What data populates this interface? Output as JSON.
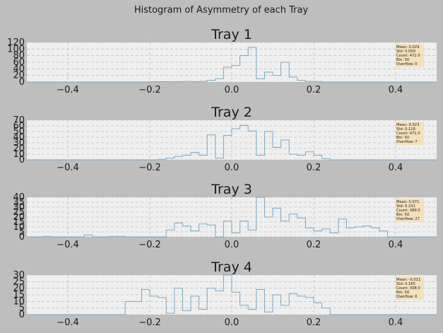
{
  "figure_title": "Histogram of Asymmetry of each Tray",
  "colors": {
    "background": "#bebebe",
    "axes_face": "#efefef",
    "grid": "#b0b0b0",
    "histogram_line": "#7aa6c2",
    "stats_box": "#f5deb3"
  },
  "chart_data": [
    {
      "type": "histogram",
      "title": "Tray 1",
      "x_edges_start": -0.5,
      "bin_width": 0.02,
      "bins": 50,
      "xlim": [
        -0.5,
        0.5
      ],
      "ylim": [
        0,
        120
      ],
      "x_ticks": [
        -0.4,
        -0.2,
        0.0,
        0.2,
        0.4
      ],
      "y_ticks": [
        0,
        20,
        40,
        60,
        80,
        100,
        120
      ],
      "grid": true,
      "legend": "stats box top-right",
      "counts": [
        0,
        0,
        0,
        0,
        0,
        0,
        0,
        0,
        0,
        0,
        0,
        0,
        0,
        0,
        0,
        1,
        1,
        1,
        1,
        2,
        1,
        2,
        5,
        10,
        45,
        50,
        80,
        105,
        10,
        30,
        20,
        60,
        15,
        5,
        2,
        2,
        0,
        0,
        0,
        0,
        0,
        0,
        0,
        0,
        0,
        0,
        0,
        0,
        0,
        0
      ],
      "stats": [
        "Mean: 0.029",
        "Std: 0.059",
        "Count: 472.0",
        "Bin: 50",
        "Overflow: 0"
      ]
    },
    {
      "type": "histogram",
      "title": "Tray 2",
      "x_edges_start": -0.5,
      "bin_width": 0.02,
      "bins": 50,
      "xlim": [
        -0.5,
        0.5
      ],
      "ylim": [
        0,
        70
      ],
      "x_ticks": [
        -0.4,
        -0.2,
        0.0,
        0.2,
        0.4
      ],
      "y_ticks": [
        0,
        10,
        20,
        30,
        40,
        50,
        60,
        70
      ],
      "grid": true,
      "legend": "stats box top-right",
      "counts": [
        0,
        0,
        0,
        0,
        0,
        0,
        0,
        0,
        0,
        0,
        0,
        0,
        0,
        0,
        0,
        0,
        1,
        3,
        6,
        8,
        13,
        8,
        44,
        3,
        43,
        55,
        61,
        51,
        8,
        50,
        22,
        35,
        10,
        8,
        14,
        8,
        2,
        0,
        0,
        0,
        0,
        0,
        0,
        0,
        0,
        0,
        0,
        0,
        0,
        0
      ],
      "stats": [
        "Mean: 0.023",
        "Std: 0.116",
        "Count: 471.0",
        "Bin: 50",
        "Overflow: 7"
      ]
    },
    {
      "type": "histogram",
      "title": "Tray 3",
      "x_edges_start": -0.5,
      "bin_width": 0.02,
      "bins": 50,
      "xlim": [
        -0.5,
        0.5
      ],
      "ylim": [
        0,
        40
      ],
      "x_ticks": [
        -0.4,
        -0.2,
        0.0,
        0.2,
        0.4
      ],
      "y_ticks": [
        0,
        5,
        10,
        15,
        20,
        25,
        30,
        35,
        40
      ],
      "grid": true,
      "legend": "stats box top-right",
      "counts": [
        0,
        0,
        0.5,
        0,
        0,
        0,
        0,
        2,
        0,
        0,
        0.5,
        0.5,
        0,
        0,
        0,
        0,
        0,
        7,
        14,
        11,
        6,
        13,
        12,
        0,
        16,
        4,
        16,
        7,
        40,
        20,
        29,
        16,
        23,
        19,
        9,
        6,
        8,
        4,
        18,
        9,
        10,
        11,
        9,
        6,
        0,
        0,
        0,
        0,
        0,
        0
      ],
      "stats": [
        "Mean: 0.071",
        "Std: 0.231",
        "Count: 389.0",
        "Bin: 50",
        "Overflow: 27"
      ]
    },
    {
      "type": "histogram",
      "title": "Tray 4",
      "x_edges_start": -0.5,
      "bin_width": 0.02,
      "bins": 50,
      "xlim": [
        -0.5,
        0.5
      ],
      "ylim": [
        0,
        30
      ],
      "x_ticks": [
        -0.4,
        -0.2,
        0.0,
        0.2,
        0.4
      ],
      "y_ticks": [
        0,
        5,
        10,
        15,
        20,
        25,
        30
      ],
      "grid": true,
      "legend": "stats box top-right",
      "counts": [
        0,
        0,
        0,
        0,
        0,
        0,
        0,
        0,
        0,
        0,
        0,
        0,
        10,
        10,
        19,
        14,
        13,
        1,
        20,
        3,
        14,
        4,
        20,
        18,
        30,
        17,
        7,
        4,
        19,
        2,
        15,
        7,
        16,
        14,
        13,
        9,
        5,
        0,
        0,
        0,
        0,
        0,
        0,
        0,
        0,
        0,
        0,
        0,
        0,
        0
      ],
      "stats": [
        "Mean: -0.011",
        "Std: 0.165",
        "Count: 308.0",
        "Bin: 50",
        "Overflow: 6"
      ]
    }
  ]
}
